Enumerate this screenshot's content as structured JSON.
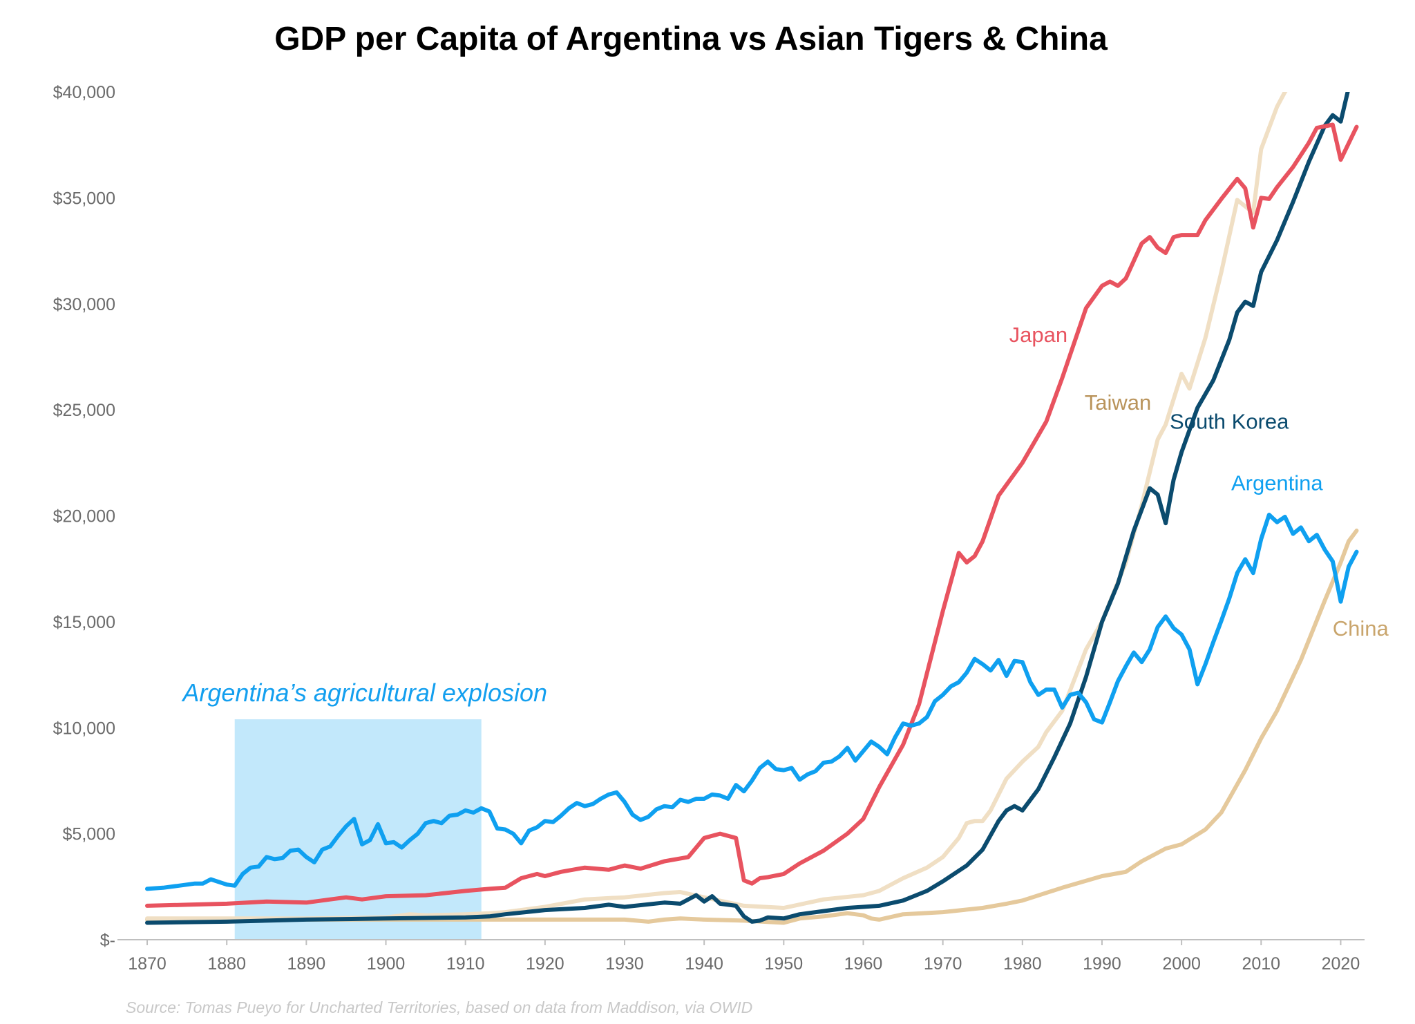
{
  "chart_data": {
    "type": "line",
    "title": "GDP per Capita of Argentina vs Asian Tigers & China",
    "xlabel": "",
    "ylabel": "",
    "xlim": [
      1868,
      2023
    ],
    "ylim": [
      0,
      40000
    ],
    "x_ticks": [
      "1870",
      "1880",
      "1890",
      "1900",
      "1910",
      "1920",
      "1930",
      "1940",
      "1950",
      "1960",
      "1970",
      "1980",
      "1990",
      "2000",
      "2010",
      "2020"
    ],
    "y_ticks": [
      "$-",
      "$5,000",
      "$10,000",
      "$15,000",
      "$20,000",
      "$25,000",
      "$30,000",
      "$35,000",
      "$40,000"
    ],
    "grid": false,
    "legend": "direct labels",
    "annotation": {
      "text": "Argentina’s agricultural explosion",
      "x_range": [
        1881,
        1912
      ],
      "y_range": [
        0,
        10400
      ],
      "color": "#c2e8fb",
      "text_color": "#139fef"
    },
    "series": [
      {
        "name": "Argentina",
        "color": "#0fa0f0",
        "x": [
          1870,
          1872,
          1874,
          1876,
          1877,
          1878,
          1880,
          1881,
          1882,
          1883,
          1884,
          1885,
          1886,
          1887,
          1888,
          1889,
          1890,
          1891,
          1892,
          1893,
          1894,
          1895,
          1896,
          1897,
          1898,
          1899,
          1900,
          1901,
          1902,
          1903,
          1904,
          1905,
          1906,
          1907,
          1908,
          1909,
          1910,
          1911,
          1912,
          1913,
          1914,
          1915,
          1916,
          1917,
          1918,
          1919,
          1920,
          1921,
          1922,
          1923,
          1924,
          1925,
          1926,
          1927,
          1928,
          1929,
          1930,
          1931,
          1932,
          1933,
          1934,
          1935,
          1936,
          1937,
          1938,
          1939,
          1940,
          1941,
          1942,
          1943,
          1944,
          1945,
          1946,
          1947,
          1948,
          1949,
          1950,
          1951,
          1952,
          1953,
          1954,
          1955,
          1956,
          1957,
          1958,
          1959,
          1960,
          1961,
          1962,
          1963,
          1964,
          1965,
          1966,
          1967,
          1968,
          1969,
          1970,
          1971,
          1972,
          1973,
          1974,
          1975,
          1976,
          1977,
          1978,
          1979,
          1980,
          1981,
          1982,
          1983,
          1984,
          1985,
          1986,
          1987,
          1988,
          1989,
          1990,
          1991,
          1992,
          1993,
          1994,
          1995,
          1996,
          1997,
          1998,
          1999,
          2000,
          2001,
          2002,
          2003,
          2004,
          2005,
          2006,
          2007,
          2008,
          2009,
          2010,
          2011,
          2012,
          2013,
          2014,
          2015,
          2016,
          2017,
          2018,
          2019,
          2020,
          2021,
          2022
        ],
        "values": [
          2400,
          2450,
          2550,
          2650,
          2650,
          2850,
          2600,
          2550,
          3100,
          3400,
          3450,
          3900,
          3800,
          3850,
          4200,
          4250,
          3900,
          3650,
          4250,
          4400,
          4900,
          5350,
          5700,
          4500,
          4700,
          5450,
          4550,
          4600,
          4350,
          4700,
          5000,
          5500,
          5600,
          5500,
          5850,
          5900,
          6100,
          6000,
          6200,
          6050,
          5250,
          5200,
          5000,
          4550,
          5150,
          5300,
          5600,
          5550,
          5850,
          6200,
          6450,
          6300,
          6400,
          6650,
          6850,
          6950,
          6500,
          5900,
          5650,
          5800,
          6150,
          6300,
          6250,
          6600,
          6500,
          6650,
          6650,
          6850,
          6800,
          6650,
          7300,
          7000,
          7500,
          8100,
          8400,
          8050,
          8000,
          8100,
          7550,
          7800,
          7950,
          8350,
          8400,
          8650,
          9050,
          8450,
          8900,
          9350,
          9100,
          8750,
          9550,
          10200,
          10100,
          10200,
          10500,
          11250,
          11550,
          11950,
          12150,
          12600,
          13250,
          13000,
          12700,
          13200,
          12450,
          13150,
          13100,
          12150,
          11550,
          11800,
          11800,
          10950,
          11550,
          11650,
          11200,
          10400,
          10250,
          11200,
          12200,
          12900,
          13550,
          13100,
          13700,
          14750,
          15250,
          14700,
          14400,
          13700,
          12050,
          13000,
          14050,
          15050,
          16100,
          17300,
          17950,
          17300,
          18900,
          20050,
          19700,
          19950,
          19150,
          19450,
          18800,
          19100,
          18400,
          17850,
          15950,
          17600,
          18300
        ]
      },
      {
        "name": "Japan",
        "color": "#e8535f",
        "x": [
          1870,
          1875,
          1880,
          1885,
          1890,
          1893,
          1895,
          1897,
          1900,
          1905,
          1910,
          1913,
          1915,
          1917,
          1919,
          1920,
          1922,
          1925,
          1928,
          1930,
          1932,
          1935,
          1938,
          1940,
          1942,
          1944,
          1945,
          1946,
          1947,
          1948,
          1950,
          1952,
          1955,
          1958,
          1960,
          1962,
          1965,
          1967,
          1970,
          1972,
          1973,
          1974,
          1975,
          1977,
          1980,
          1983,
          1985,
          1988,
          1990,
          1991,
          1992,
          1993,
          1995,
          1996,
          1997,
          1998,
          1999,
          2000,
          2002,
          2003,
          2005,
          2007,
          2008,
          2009,
          2010,
          2011,
          2012,
          2014,
          2016,
          2017,
          2019,
          2020,
          2022
        ],
        "values": [
          1600,
          1650,
          1700,
          1800,
          1750,
          1900,
          2000,
          1900,
          2050,
          2100,
          2300,
          2400,
          2450,
          2900,
          3100,
          3000,
          3200,
          3400,
          3300,
          3500,
          3350,
          3700,
          3900,
          4800,
          5000,
          4800,
          2800,
          2650,
          2900,
          2950,
          3100,
          3600,
          4200,
          5000,
          5700,
          7200,
          9200,
          11100,
          15500,
          18250,
          17800,
          18100,
          18800,
          20950,
          22500,
          24450,
          26500,
          29800,
          30850,
          31050,
          30850,
          31200,
          32850,
          33150,
          32650,
          32400,
          33150,
          33250,
          33250,
          33950,
          34950,
          35900,
          35450,
          33600,
          35000,
          34950,
          35500,
          36450,
          37600,
          38300,
          38450,
          36800,
          38350
        ]
      },
      {
        "name": "Taiwan",
        "color": "#f0dfc4",
        "x": [
          1870,
          1880,
          1890,
          1900,
          1903,
          1905,
          1910,
          1913,
          1915,
          1920,
          1925,
          1930,
          1935,
          1937,
          1940,
          1945,
          1950,
          1955,
          1960,
          1962,
          1965,
          1968,
          1970,
          1972,
          1973,
          1974,
          1975,
          1976,
          1978,
          1980,
          1982,
          1983,
          1985,
          1988,
          1990,
          1993,
          1995,
          1997,
          1998,
          2000,
          2001,
          2003,
          2005,
          2007,
          2009,
          2010,
          2012,
          2013,
          2014
        ],
        "values": [
          1000,
          1000,
          1000,
          1050,
          1200,
          1150,
          1200,
          1250,
          1300,
          1550,
          1900,
          2000,
          2200,
          2250,
          2000,
          1600,
          1500,
          1900,
          2100,
          2300,
          2900,
          3400,
          3900,
          4800,
          5500,
          5600,
          5600,
          6100,
          7600,
          8400,
          9100,
          9800,
          10800,
          13700,
          15000,
          17800,
          20500,
          23600,
          24300,
          26700,
          26000,
          28400,
          31500,
          34900,
          34300,
          37300,
          39300,
          40000,
          40500
        ]
      },
      {
        "name": "South Korea",
        "color": "#0b4b6e",
        "x": [
          1870,
          1880,
          1890,
          1900,
          1910,
          1913,
          1915,
          1920,
          1925,
          1928,
          1930,
          1935,
          1937,
          1939,
          1940,
          1941,
          1942,
          1944,
          1945,
          1946,
          1947,
          1948,
          1950,
          1952,
          1955,
          1958,
          1960,
          1962,
          1965,
          1968,
          1970,
          1973,
          1975,
          1977,
          1978,
          1979,
          1980,
          1982,
          1984,
          1986,
          1988,
          1990,
          1992,
          1994,
          1996,
          1997,
          1998,
          1999,
          2000,
          2002,
          2004,
          2006,
          2007,
          2008,
          2009,
          2010,
          2012,
          2014,
          2016,
          2018,
          2019,
          2020,
          2021
        ],
        "values": [
          800,
          850,
          950,
          1000,
          1050,
          1100,
          1200,
          1400,
          1500,
          1650,
          1550,
          1750,
          1700,
          2100,
          1800,
          2050,
          1700,
          1600,
          1100,
          850,
          900,
          1050,
          1000,
          1200,
          1350,
          1500,
          1550,
          1600,
          1850,
          2300,
          2750,
          3500,
          4250,
          5600,
          6100,
          6300,
          6100,
          7100,
          8600,
          10200,
          12400,
          15000,
          16800,
          19300,
          21300,
          21000,
          19650,
          21700,
          23000,
          25100,
          26400,
          28300,
          29600,
          30100,
          29900,
          31500,
          33000,
          34800,
          36700,
          38400,
          38900,
          38600,
          40200
        ]
      },
      {
        "name": "China",
        "color": "#e5c99c",
        "x": [
          1870,
          1880,
          1890,
          1900,
          1910,
          1920,
          1930,
          1933,
          1935,
          1937,
          1940,
          1945,
          1950,
          1952,
          1955,
          1958,
          1960,
          1961,
          1962,
          1965,
          1970,
          1975,
          1978,
          1980,
          1985,
          1990,
          1993,
          1995,
          1998,
          2000,
          2003,
          2005,
          2008,
          2010,
          2012,
          2015,
          2018,
          2020,
          2021,
          2022
        ],
        "values": [
          950,
          950,
          950,
          950,
          950,
          950,
          950,
          850,
          950,
          1000,
          950,
          900,
          800,
          1000,
          1100,
          1250,
          1150,
          1000,
          950,
          1200,
          1300,
          1500,
          1700,
          1850,
          2450,
          3000,
          3200,
          3700,
          4300,
          4500,
          5200,
          6000,
          8000,
          9500,
          10800,
          13200,
          16000,
          17800,
          18800,
          19300
        ]
      }
    ],
    "labels": [
      {
        "series": "Japan",
        "text": "Japan",
        "x": 1982.0,
        "y": 28200
      },
      {
        "series": "Taiwan",
        "text": "Taiwan",
        "x": 1992.0,
        "y": 25000
      },
      {
        "series": "South Korea",
        "text": "South Korea",
        "x": 2006.0,
        "y": 24100
      },
      {
        "series": "Argentina",
        "text": "Argentina",
        "x": 2012.0,
        "y": 21200
      },
      {
        "series": "China",
        "text": "China",
        "x": 2022.5,
        "y": 14350
      }
    ],
    "source": "Source: Tomas Pueyo for Uncharted Territories, based on data from Maddison, via OWID"
  }
}
